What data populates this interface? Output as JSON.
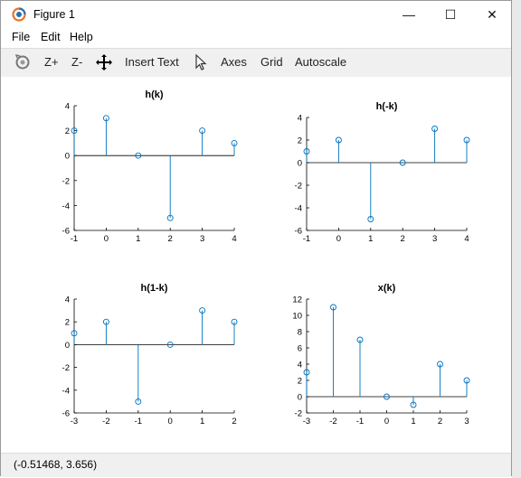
{
  "window": {
    "title": "Figure 1",
    "controls": {
      "minimize": "—",
      "maximize": "☐",
      "close": "✕"
    }
  },
  "menu": [
    "File",
    "Edit",
    "Help"
  ],
  "toolbar": {
    "rotate_icon": "rotate-icon",
    "zoom_in": "Z+",
    "zoom_out": "Z-",
    "pan_icon": "pan-icon",
    "insert_text": "Insert Text",
    "select_icon": "pointer-icon",
    "axes": "Axes",
    "grid": "Grid",
    "autoscale": "Autoscale"
  },
  "status": "(-0.51468, 3.656)",
  "colors": {
    "stem": "#0072bd",
    "zero_line": "#000000"
  },
  "chart_data": [
    {
      "type": "stem",
      "title": "h(k)",
      "x": [
        -1,
        0,
        1,
        2,
        3,
        4
      ],
      "y": [
        2,
        3,
        0,
        -5,
        2,
        1
      ],
      "xlim": [
        -1,
        4
      ],
      "ylim": [
        -6,
        4
      ],
      "xticks": [
        "-1",
        "0",
        "1",
        "2",
        "3",
        "4"
      ],
      "yticks": [
        "4",
        "2",
        "0",
        "-2",
        "-4",
        "-6"
      ]
    },
    {
      "type": "stem",
      "title": "h(-k)",
      "x": [
        -1,
        0,
        1,
        2,
        3,
        4
      ],
      "y": [
        1,
        2,
        -5,
        0,
        3,
        2
      ],
      "xlim": [
        -1,
        4
      ],
      "ylim": [
        -6,
        4
      ],
      "xticks": [
        "-1",
        "0",
        "1",
        "2",
        "3",
        "4"
      ],
      "yticks": [
        "4",
        "2",
        "0",
        "-2",
        "-4",
        "-6"
      ]
    },
    {
      "type": "stem",
      "title": "h(1-k)",
      "x": [
        -3,
        -2,
        -1,
        0,
        1,
        2
      ],
      "y": [
        1,
        2,
        -5,
        0,
        3,
        2
      ],
      "xlim": [
        -3,
        2
      ],
      "ylim": [
        -6,
        4
      ],
      "xticks": [
        "-3",
        "-2",
        "-1",
        "0",
        "1",
        "2"
      ],
      "yticks": [
        "4",
        "2",
        "0",
        "-2",
        "-4",
        "-6"
      ]
    },
    {
      "type": "stem",
      "title": "x(k)",
      "x": [
        -3,
        -2,
        -1,
        0,
        1,
        2,
        3
      ],
      "y": [
        3,
        11,
        7,
        0,
        -1,
        4,
        2
      ],
      "xlim": [
        -3,
        3
      ],
      "ylim": [
        -2,
        12
      ],
      "xticks": [
        "-3",
        "-2",
        "-1",
        "0",
        "1",
        "2",
        "3"
      ],
      "yticks": [
        "12",
        "10",
        "8",
        "6",
        "4",
        "2",
        "0",
        "-2"
      ]
    }
  ]
}
